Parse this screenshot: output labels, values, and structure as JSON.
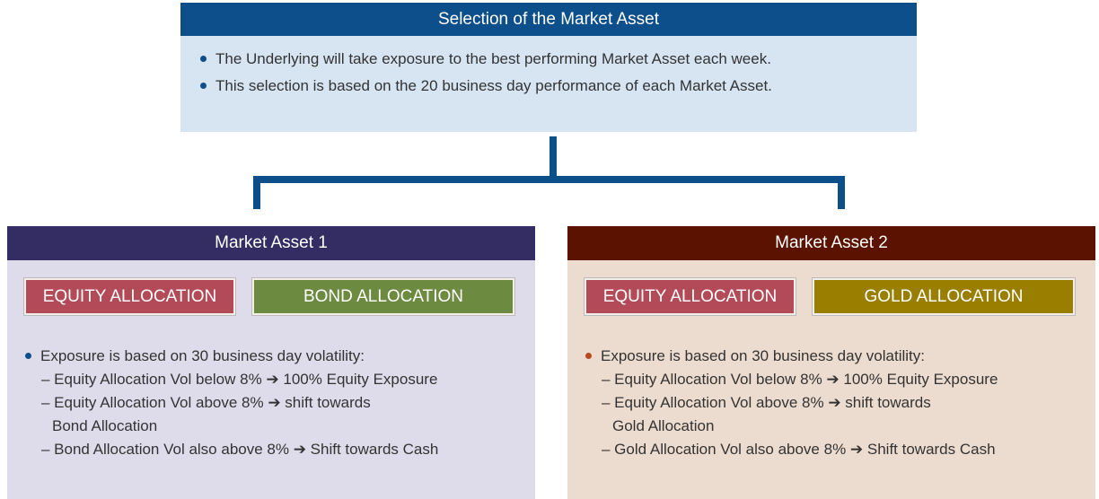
{
  "top": {
    "title": "Selection of the Market Asset",
    "bullets": [
      "The Underlying will take exposure to the best performing Market Asset each week.",
      "This selection is based on the 20 business day performance of each Market Asset."
    ]
  },
  "panels": [
    {
      "title": "Market Asset 1",
      "allocations": [
        "EQUITY ALLOCATION",
        "BOND ALLOCATION"
      ],
      "intro": "Exposure is based on 30 business day volatility:",
      "items": [
        [
          "– Equity Allocation Vol below 8% ➔ 100% Equity Exposure"
        ],
        [
          "– Equity Allocation Vol above 8% ➔ shift towards",
          "Bond Allocation"
        ],
        [
          "– Bond Allocation Vol also above 8% ➔ Shift towards Cash"
        ]
      ]
    },
    {
      "title": "Market Asset 2",
      "allocations": [
        "EQUITY ALLOCATION",
        "GOLD ALLOCATION"
      ],
      "intro": "Exposure is based on 30 business day volatility:",
      "items": [
        [
          "– Equity Allocation Vol below 8% ➔ 100% Equity Exposure"
        ],
        [
          "– Equity Allocation Vol above 8% ➔ shift towards",
          "Gold Allocation"
        ],
        [
          "– Gold Allocation Vol also above 8% ➔ Shift towards Cash"
        ]
      ]
    }
  ]
}
